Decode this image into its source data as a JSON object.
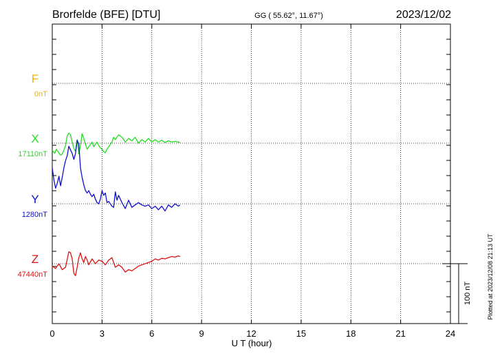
{
  "header": {
    "station": "Brorfelde (BFE)  [DTU]",
    "coords": "GG ( 55.62°,  11.67°)",
    "date": "2023/12/02"
  },
  "side_note": "Plotted at 2023/12/08 21:13 UT",
  "scale_bar_label": "100 nT",
  "chart_data": {
    "type": "line",
    "xlabel": "U T (hour)",
    "xlim": [
      0,
      24
    ],
    "xticks": [
      "0",
      "3",
      "6",
      "9",
      "12",
      "15",
      "18",
      "21",
      "24"
    ],
    "grid": true,
    "components": [
      {
        "label": "F",
        "baseline": "0nT",
        "color": "#f0b400",
        "points": []
      },
      {
        "label": "X",
        "baseline": "17110nT",
        "color": "#22dd22",
        "points": [
          [
            0.0,
            -12
          ],
          [
            0.15,
            -17
          ],
          [
            0.25,
            -10
          ],
          [
            0.35,
            -14
          ],
          [
            0.5,
            -20
          ],
          [
            0.6,
            -18
          ],
          [
            0.7,
            -12
          ],
          [
            0.8,
            -4
          ],
          [
            0.9,
            12
          ],
          [
            1.0,
            17
          ],
          [
            1.1,
            14
          ],
          [
            1.2,
            2
          ],
          [
            1.3,
            -8
          ],
          [
            1.4,
            -14
          ],
          [
            1.5,
            6
          ],
          [
            1.6,
            -18
          ],
          [
            1.7,
            -4
          ],
          [
            1.8,
            16
          ],
          [
            1.9,
            8
          ],
          [
            2.0,
            -2
          ],
          [
            2.1,
            -10
          ],
          [
            2.2,
            -6
          ],
          [
            2.3,
            -2
          ],
          [
            2.4,
            2
          ],
          [
            2.5,
            -6
          ],
          [
            2.6,
            -2
          ],
          [
            2.7,
            2
          ],
          [
            2.8,
            -4
          ],
          [
            2.9,
            -8
          ],
          [
            3.0,
            -10
          ],
          [
            3.1,
            -14
          ],
          [
            3.2,
            -16
          ],
          [
            3.3,
            -10
          ],
          [
            3.4,
            -6
          ],
          [
            3.6,
            2
          ],
          [
            3.7,
            10
          ],
          [
            3.8,
            6
          ],
          [
            4.0,
            14
          ],
          [
            4.2,
            10
          ],
          [
            4.4,
            2
          ],
          [
            4.6,
            8
          ],
          [
            4.8,
            4
          ],
          [
            5.0,
            10
          ],
          [
            5.2,
            0
          ],
          [
            5.4,
            6
          ],
          [
            5.6,
            2
          ],
          [
            5.8,
            8
          ],
          [
            6.0,
            2
          ],
          [
            6.2,
            6
          ],
          [
            6.4,
            2
          ],
          [
            6.6,
            5
          ],
          [
            6.8,
            1
          ],
          [
            7.0,
            4
          ],
          [
            7.2,
            2
          ],
          [
            7.4,
            3
          ],
          [
            7.6,
            2
          ],
          [
            7.7,
            1
          ]
        ]
      },
      {
        "label": "Y",
        "baseline": "1280nT",
        "color": "#1010cc",
        "points": [
          [
            0.0,
            60
          ],
          [
            0.1,
            40
          ],
          [
            0.2,
            26
          ],
          [
            0.3,
            34
          ],
          [
            0.4,
            46
          ],
          [
            0.5,
            30
          ],
          [
            0.6,
            44
          ],
          [
            0.7,
            60
          ],
          [
            0.8,
            72
          ],
          [
            0.9,
            80
          ],
          [
            1.0,
            96
          ],
          [
            1.1,
            90
          ],
          [
            1.2,
            84
          ],
          [
            1.3,
            74
          ],
          [
            1.4,
            84
          ],
          [
            1.5,
            106
          ],
          [
            1.6,
            100
          ],
          [
            1.7,
            60
          ],
          [
            1.8,
            44
          ],
          [
            1.9,
            32
          ],
          [
            2.0,
            22
          ],
          [
            2.1,
            18
          ],
          [
            2.2,
            22
          ],
          [
            2.3,
            16
          ],
          [
            2.4,
            12
          ],
          [
            2.5,
            16
          ],
          [
            2.6,
            8
          ],
          [
            2.7,
            2
          ],
          [
            2.8,
            0
          ],
          [
            2.9,
            8
          ],
          [
            3.0,
            22
          ],
          [
            3.1,
            14
          ],
          [
            3.2,
            18
          ],
          [
            3.3,
            2
          ],
          [
            3.4,
            4
          ],
          [
            3.5,
            0
          ],
          [
            3.6,
            -4
          ],
          [
            3.7,
            -6
          ],
          [
            3.8,
            20
          ],
          [
            3.9,
            6
          ],
          [
            4.0,
            14
          ],
          [
            4.2,
            2
          ],
          [
            4.4,
            -8
          ],
          [
            4.6,
            6
          ],
          [
            4.8,
            -6
          ],
          [
            5.0,
            -2
          ],
          [
            5.2,
            2
          ],
          [
            5.4,
            -2
          ],
          [
            5.6,
            -4
          ],
          [
            5.8,
            -2
          ],
          [
            6.0,
            -8
          ],
          [
            6.2,
            -4
          ],
          [
            6.4,
            -10
          ],
          [
            6.6,
            -4
          ],
          [
            6.8,
            -12
          ],
          [
            7.0,
            -2
          ],
          [
            7.2,
            -6
          ],
          [
            7.4,
            0
          ],
          [
            7.6,
            -4
          ],
          [
            7.7,
            -2
          ]
        ]
      },
      {
        "label": "Z",
        "baseline": "47440nT",
        "color": "#dd1111",
        "points": [
          [
            0.0,
            -4
          ],
          [
            0.2,
            -8
          ],
          [
            0.4,
            0
          ],
          [
            0.6,
            -10
          ],
          [
            0.8,
            -6
          ],
          [
            1.0,
            20
          ],
          [
            1.1,
            18
          ],
          [
            1.2,
            8
          ],
          [
            1.3,
            -16
          ],
          [
            1.4,
            -20
          ],
          [
            1.5,
            -6
          ],
          [
            1.6,
            10
          ],
          [
            1.7,
            18
          ],
          [
            1.8,
            8
          ],
          [
            1.9,
            2
          ],
          [
            2.0,
            12
          ],
          [
            2.1,
            6
          ],
          [
            2.2,
            -2
          ],
          [
            2.4,
            8
          ],
          [
            2.6,
            0
          ],
          [
            2.8,
            6
          ],
          [
            3.0,
            4
          ],
          [
            3.2,
            -2
          ],
          [
            3.4,
            6
          ],
          [
            3.6,
            10
          ],
          [
            3.8,
            -6
          ],
          [
            4.0,
            -2
          ],
          [
            4.2,
            -6
          ],
          [
            4.4,
            -14
          ],
          [
            4.6,
            -10
          ],
          [
            4.8,
            -12
          ],
          [
            5.0,
            -8
          ],
          [
            5.2,
            -4
          ],
          [
            5.4,
            -2
          ],
          [
            5.6,
            0
          ],
          [
            5.8,
            2
          ],
          [
            6.0,
            4
          ],
          [
            6.2,
            8
          ],
          [
            6.4,
            6
          ],
          [
            6.6,
            9
          ],
          [
            6.8,
            8
          ],
          [
            7.0,
            10
          ],
          [
            7.2,
            12
          ],
          [
            7.4,
            11
          ],
          [
            7.6,
            13
          ],
          [
            7.7,
            12
          ]
        ]
      }
    ]
  }
}
